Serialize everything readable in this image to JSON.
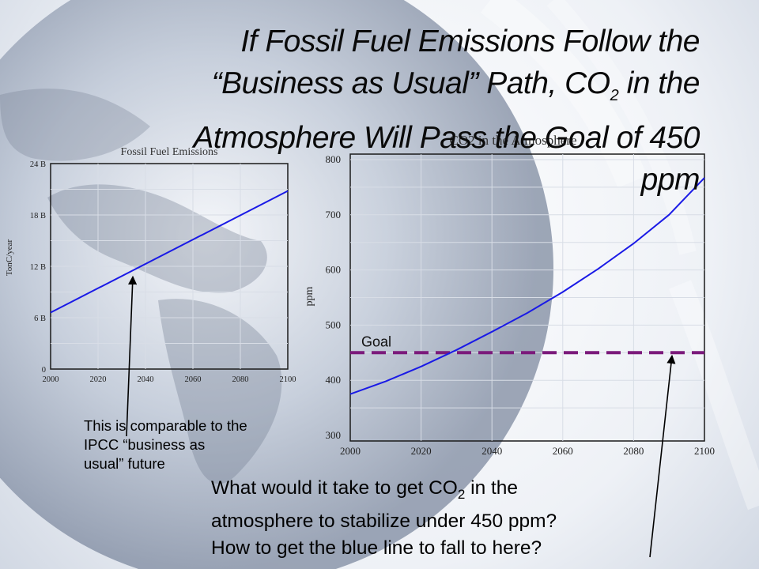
{
  "title": {
    "line1": "If Fossil Fuel Emissions Follow the",
    "line2_pre": "“Business as Usual” Path, CO",
    "line2_sub": "2",
    "line2_post": " in the",
    "line3": "Atmosphere Will Pass the Goal of 450",
    "line4": "ppm"
  },
  "notes": {
    "ipcc_l1": "This is comparable to the",
    "ipcc_l2": "IPCC “business as",
    "ipcc_l3": "usual” future",
    "q1_pre": "What would it take to get CO",
    "q1_sub": "2",
    "q1_post": " in the",
    "q2": "atmosphere to stabilize under 450 ppm?",
    "q3": "How to get the blue line to fall to here?"
  },
  "colors": {
    "line": "#1a1ae6",
    "goal": "#7b1a7b",
    "grid": "#d8dde6",
    "frame": "#1a1a1a"
  },
  "chart_data": [
    {
      "type": "line",
      "title": "Fossil Fuel Emissions",
      "xlabel": "",
      "ylabel": "TonC/year",
      "x_ticks": [
        "2000",
        "2020",
        "2040",
        "2060",
        "2080",
        "2100"
      ],
      "y_ticks": [
        "0",
        "6 B",
        "12 B",
        "18 B",
        "24 B"
      ],
      "xlim": [
        2000,
        2100
      ],
      "ylim": [
        0,
        24
      ],
      "grid": true,
      "series": [
        {
          "x": [
            2000,
            2100
          ],
          "y": [
            6.6,
            20.8
          ]
        }
      ]
    },
    {
      "type": "line",
      "title": "CO2 in the Atmosphere",
      "xlabel": "",
      "ylabel": "ppm",
      "x_ticks": [
        "2000",
        "2020",
        "2040",
        "2060",
        "2080",
        "2100"
      ],
      "y_ticks": [
        "300",
        "400",
        "500",
        "600",
        "700",
        "800"
      ],
      "xlim": [
        2000,
        2100
      ],
      "ylim": [
        290,
        810
      ],
      "grid": true,
      "series": [
        {
          "x": [
            2000,
            2010,
            2020,
            2030,
            2040,
            2050,
            2060,
            2070,
            2080,
            2090,
            2100
          ],
          "y": [
            375,
            398,
            425,
            455,
            488,
            522,
            560,
            602,
            648,
            700,
            767
          ]
        }
      ],
      "reference_line": {
        "label": "Goal",
        "y": 450
      }
    }
  ]
}
